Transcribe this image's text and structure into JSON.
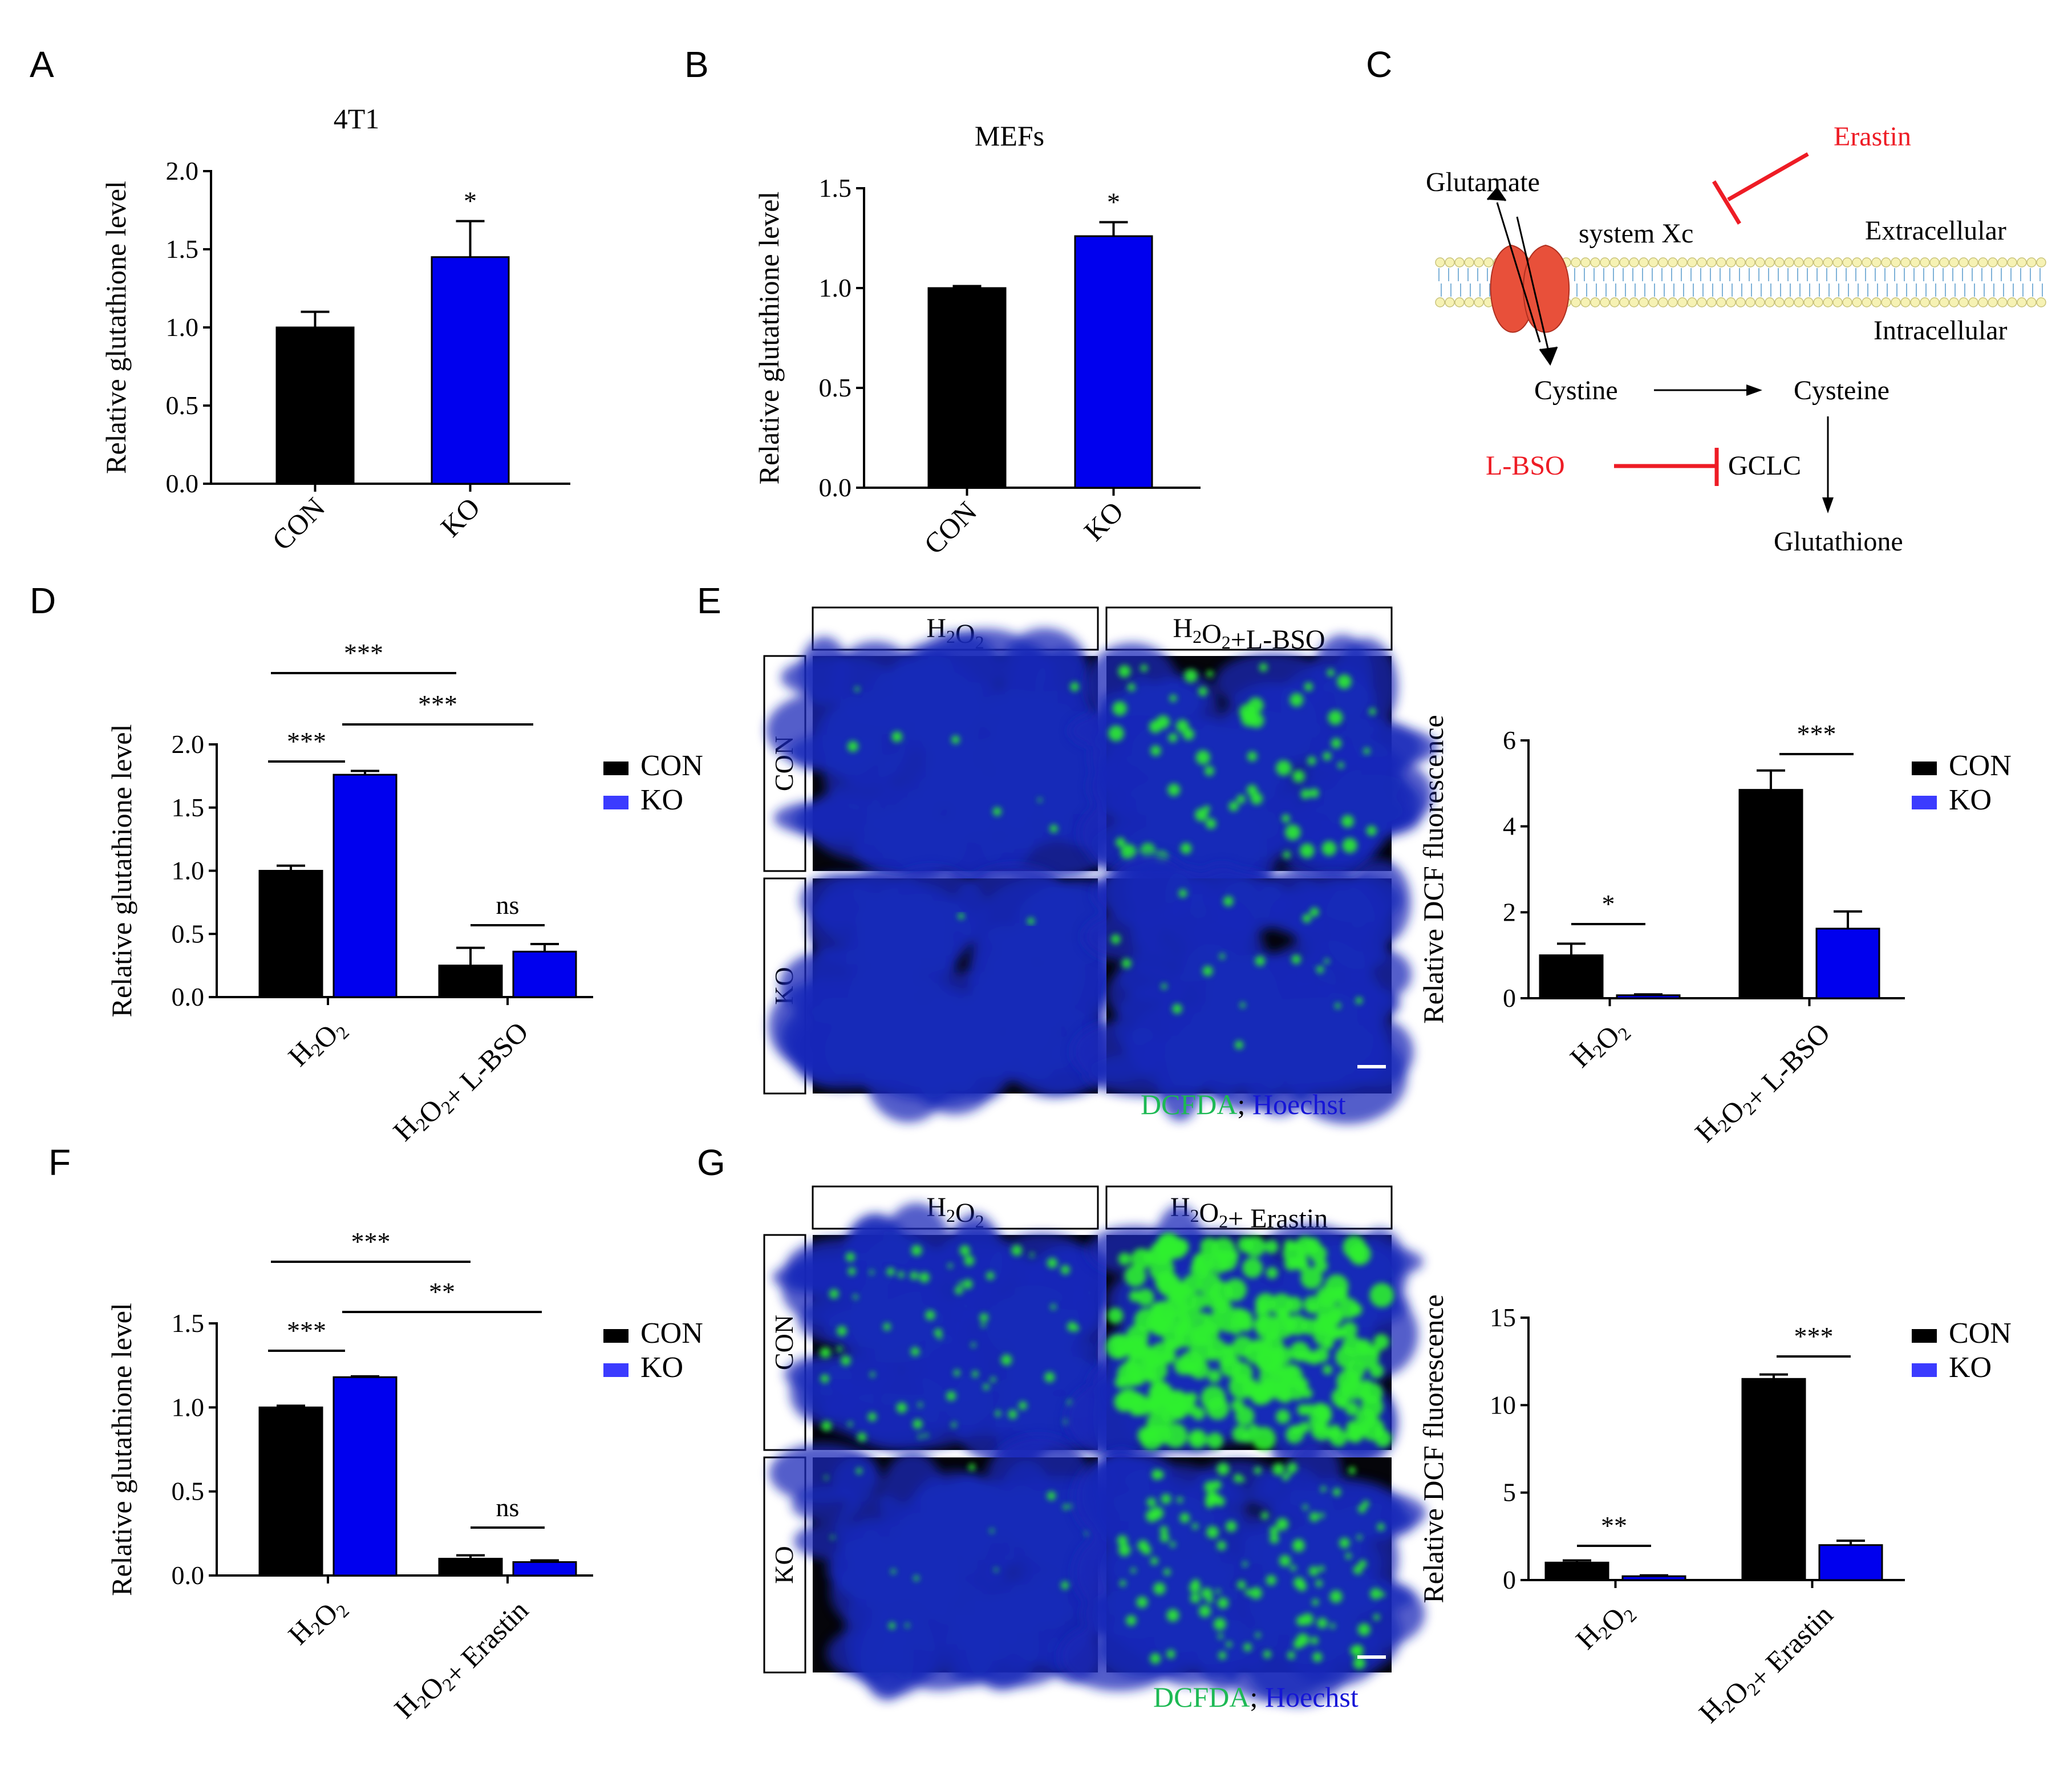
{
  "panels": {
    "A": {
      "letter": "A"
    },
    "B": {
      "letter": "B"
    },
    "C": {
      "letter": "C"
    },
    "D": {
      "letter": "D"
    },
    "E": {
      "letter": "E"
    },
    "F": {
      "letter": "F"
    },
    "G": {
      "letter": "G"
    }
  },
  "colors": {
    "con": "#000000",
    "ko": "#0000ee",
    "ko_legend": "#3b3bff",
    "inhibitor": "#ee1c25",
    "transporter": "#e8503a"
  },
  "chart_data": [
    {
      "id": "A",
      "type": "bar",
      "title": "4T1",
      "ylabel": "Relative glutathione level",
      "categories": [
        "CON",
        "KO"
      ],
      "values": [
        1.0,
        1.45
      ],
      "errors": [
        0.1,
        0.23
      ],
      "ylim": [
        0,
        2.0
      ],
      "yticks": [
        "0.0",
        "0.5",
        "1.0",
        "1.5",
        "2.0"
      ],
      "sig": "*"
    },
    {
      "id": "B",
      "type": "bar",
      "title": "MEFs",
      "ylabel": "Relative glutathione level",
      "categories": [
        "CON",
        "KO"
      ],
      "values": [
        1.0,
        1.26
      ],
      "errors": [
        0.01,
        0.07
      ],
      "ylim": [
        0,
        1.5
      ],
      "yticks": [
        "0.0",
        "0.5",
        "1.0",
        "1.5"
      ],
      "sig": "*"
    },
    {
      "id": "D",
      "type": "bar",
      "ylabel": "Relative glutathione level",
      "groups": [
        {
          "label": "H₂O₂",
          "sub": [
            [
              "H",
              "2"
            ],
            [
              "O",
              "2"
            ]
          ],
          "con": 1.0,
          "ko": 1.76,
          "con_err": 0.04,
          "ko_err": 0.03
        },
        {
          "label": "H₂O₂+ L-BSO",
          "sub": [
            [
              "H",
              "2"
            ],
            [
              "O",
              "2"
            ],
            [
              "+ L-BSO",
              ""
            ]
          ],
          "con": 0.25,
          "ko": 0.36,
          "con_err": 0.14,
          "ko_err": 0.06
        }
      ],
      "ylim": [
        0,
        2.0
      ],
      "yticks": [
        "0.0",
        "0.5",
        "1.0",
        "1.5",
        "2.0"
      ],
      "legend": [
        "CON",
        "KO"
      ],
      "brackets": [
        "***",
        "***",
        "***",
        "ns"
      ]
    },
    {
      "id": "E",
      "type": "bar",
      "ylabel": "Relative DCF fluorescence",
      "groups": [
        {
          "label": "H₂O₂",
          "sub": [
            [
              "H",
              "2"
            ],
            [
              "O",
              "2"
            ]
          ],
          "con": 1.0,
          "ko": 0.07,
          "con_err": 0.27,
          "ko_err": 0.02
        },
        {
          "label": "H₂O₂+ L-BSO",
          "sub": [
            [
              "H",
              "2"
            ],
            [
              "O",
              "2"
            ],
            [
              "+ L-BSO",
              ""
            ]
          ],
          "con": 4.85,
          "ko": 1.62,
          "con_err": 0.45,
          "ko_err": 0.4
        }
      ],
      "ylim": [
        0,
        6
      ],
      "yticks": [
        "0",
        "2",
        "4",
        "6"
      ],
      "legend": [
        "CON",
        "KO"
      ],
      "brackets": [
        "*",
        "***"
      ]
    },
    {
      "id": "F",
      "type": "bar",
      "ylabel": "Relative glutathione level",
      "groups": [
        {
          "label": "H₂O₂",
          "sub": [
            [
              "H",
              "2"
            ],
            [
              "O",
              "2"
            ]
          ],
          "con": 1.0,
          "ko": 1.18,
          "con_err": 0.01,
          "ko_err": 0.005
        },
        {
          "label": "H₂O₂+ Erastin",
          "sub": [
            [
              "H",
              "2"
            ],
            [
              "O",
              "2"
            ],
            [
              "+ Erastin",
              ""
            ]
          ],
          "con": 0.1,
          "ko": 0.08,
          "con_err": 0.02,
          "ko_err": 0.01
        }
      ],
      "ylim": [
        0,
        1.5
      ],
      "yticks": [
        "0.0",
        "0.5",
        "1.0",
        "1.5"
      ],
      "legend": [
        "CON",
        "KO"
      ],
      "brackets": [
        "***",
        "**",
        "***",
        "ns"
      ]
    },
    {
      "id": "G",
      "type": "bar",
      "ylabel": "Relative DCF fluorescence",
      "groups": [
        {
          "label": "H₂O₂",
          "sub": [
            [
              "H",
              "2"
            ],
            [
              "O",
              "2"
            ]
          ],
          "con": 1.0,
          "ko": 0.22,
          "con_err": 0.12,
          "ko_err": 0.05
        },
        {
          "label": "H₂O₂+ Erastin",
          "sub": [
            [
              "H",
              "2"
            ],
            [
              "O",
              "2"
            ],
            [
              "+ Erastin",
              ""
            ]
          ],
          "con": 11.5,
          "ko": 2.0,
          "con_err": 0.25,
          "ko_err": 0.25
        }
      ],
      "ylim": [
        0,
        15
      ],
      "yticks": [
        "0",
        "5",
        "10",
        "15"
      ],
      "legend": [
        "CON",
        "KO"
      ],
      "brackets": [
        "**",
        "***"
      ]
    }
  ],
  "diagram": {
    "erastin": "Erastin",
    "glutamate": "Glutamate",
    "system_xc": "system Xc",
    "extracellular": "Extracellular",
    "intracellular": "Intracellular",
    "cystine": "Cystine",
    "cysteine": "Cysteine",
    "lbso": "L-BSO",
    "gclc": "GCLC",
    "glutathione": "Glutathione"
  },
  "microscopy": {
    "E": {
      "col1": "H₂O₂",
      "col2": "H₂O₂+L-BSO",
      "row1": "CON",
      "row2": "KO",
      "stain_green": "DCFDA",
      "stain_sep": ";",
      "stain_blue": "Hoechst"
    },
    "G": {
      "col1": "H₂O₂",
      "col2": "H₂O₂+ Erastin",
      "row1": "CON",
      "row2": "KO",
      "stain_green": "DCFDA",
      "stain_sep": ";",
      "stain_blue": "Hoechst"
    }
  }
}
